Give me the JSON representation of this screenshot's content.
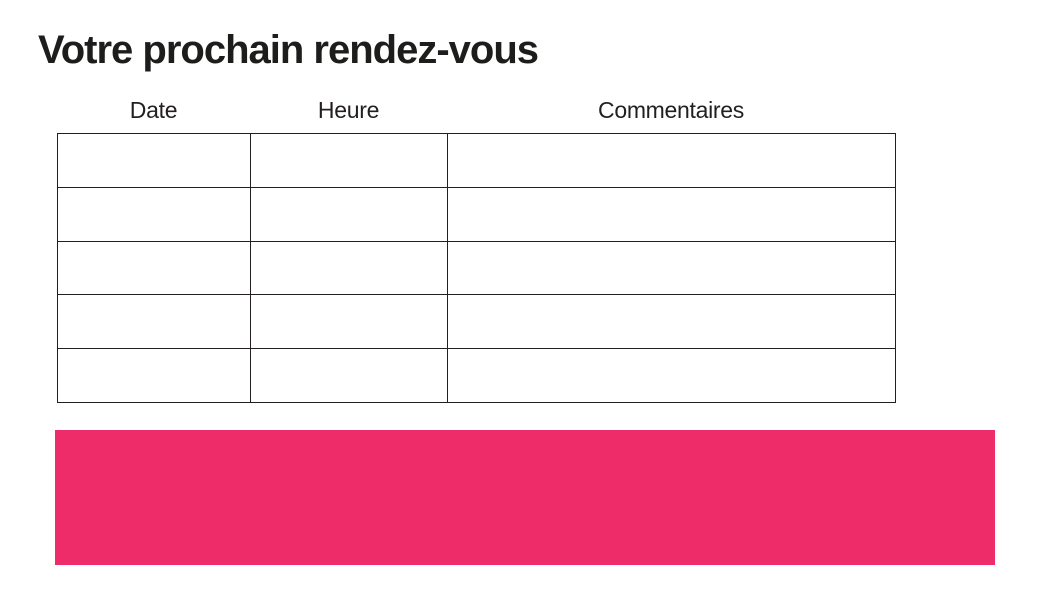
{
  "page": {
    "title": "Votre prochain rendez-vous"
  },
  "table": {
    "columns": [
      {
        "label": "Date"
      },
      {
        "label": "Heure"
      },
      {
        "label": "Commentaires"
      }
    ],
    "rows": [
      [
        "",
        "",
        ""
      ],
      [
        "",
        "",
        ""
      ],
      [
        "",
        "",
        ""
      ],
      [
        "",
        "",
        ""
      ],
      [
        "",
        "",
        ""
      ]
    ]
  },
  "banner": {
    "text": ""
  },
  "colors": {
    "accent_pink": "#ED2C69",
    "table_border": "#231F20",
    "title_text": "#1D1D1B"
  }
}
